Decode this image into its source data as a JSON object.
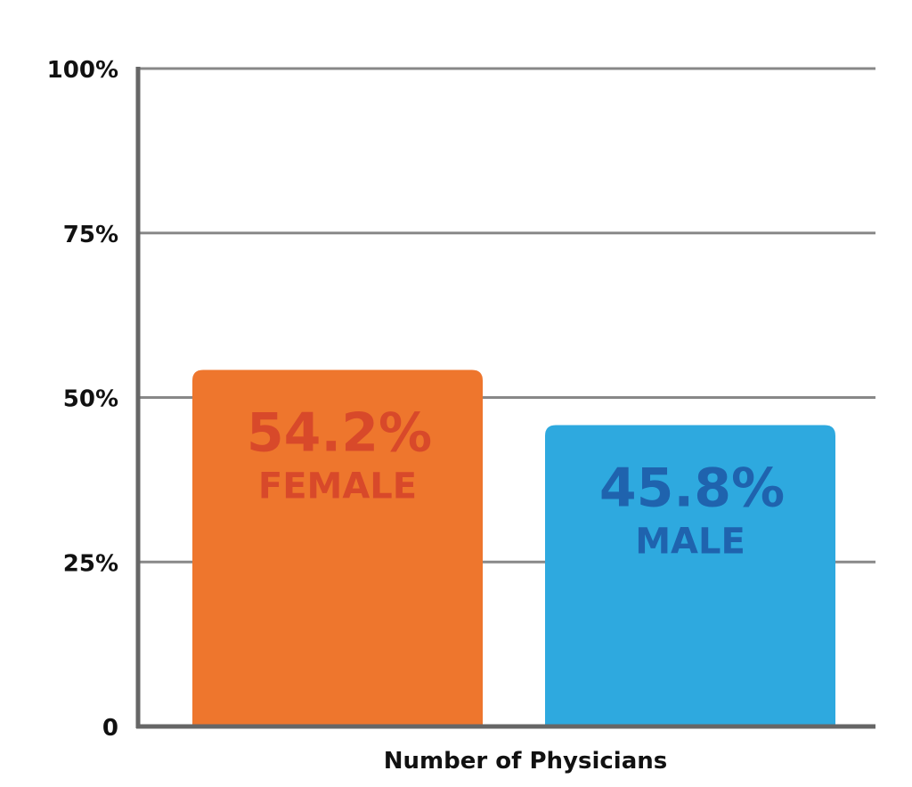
{
  "chart_data": {
    "type": "bar",
    "categories": [
      "FEMALE",
      "MALE"
    ],
    "values": [
      54.2,
      45.8
    ],
    "value_labels": [
      "54.2%",
      "45.8%"
    ],
    "bar_colors": [
      "#EE762D",
      "#2EA9DF"
    ],
    "label_colors": [
      "#D8492A",
      "#1F63AE"
    ],
    "xlabel": "Number of Physicians",
    "ylabel": "",
    "ylim": [
      0,
      100
    ],
    "yticks": [
      0,
      25,
      50,
      75,
      100
    ],
    "ytick_labels": [
      "0",
      "25%",
      "50%",
      "75%",
      "100%"
    ],
    "grid": true,
    "grid_color": "#888888",
    "axis_color": "#666666",
    "legend": "none"
  }
}
